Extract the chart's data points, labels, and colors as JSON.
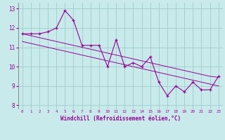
{
  "x": [
    0,
    1,
    2,
    3,
    4,
    5,
    6,
    7,
    8,
    9,
    10,
    11,
    12,
    13,
    14,
    15,
    16,
    17,
    18,
    19,
    20,
    21,
    22,
    23
  ],
  "y_data": [
    11.7,
    11.7,
    11.7,
    11.8,
    12.0,
    12.9,
    12.4,
    11.1,
    11.1,
    11.1,
    10.0,
    11.4,
    10.0,
    10.2,
    10.0,
    10.5,
    9.2,
    8.5,
    9.0,
    8.7,
    9.2,
    8.8,
    8.8,
    9.5
  ],
  "y_trend_upper": [
    11.7,
    11.6,
    11.5,
    11.4,
    11.3,
    11.2,
    11.1,
    11.0,
    10.9,
    10.8,
    10.7,
    10.6,
    10.5,
    10.4,
    10.3,
    10.2,
    10.1,
    10.0,
    9.9,
    9.8,
    9.7,
    9.6,
    9.5,
    9.45
  ],
  "y_trend_lower": [
    11.3,
    11.2,
    11.1,
    11.0,
    10.9,
    10.8,
    10.7,
    10.6,
    10.5,
    10.4,
    10.3,
    10.2,
    10.1,
    10.0,
    9.9,
    9.8,
    9.7,
    9.6,
    9.5,
    9.4,
    9.3,
    9.2,
    9.1,
    9.0
  ],
  "xlabel": "Windchill (Refroidissement éolien,°C)",
  "xtick_labels": [
    "0",
    "1",
    "2",
    "3",
    "4",
    "5",
    "6",
    "7",
    "8",
    "9",
    "10",
    "11",
    "12",
    "13",
    "14",
    "15",
    "16",
    "17",
    "18",
    "19",
    "20",
    "21",
    "22",
    "23"
  ],
  "yticks": [
    8,
    9,
    10,
    11,
    12,
    13
  ],
  "ylim": [
    7.8,
    13.3
  ],
  "xlim": [
    -0.5,
    23.5
  ],
  "line_color": "#990099",
  "bg_color": "#c8eaea",
  "grid_color": "#a0cccc",
  "plot_bg": "#c8eaea"
}
